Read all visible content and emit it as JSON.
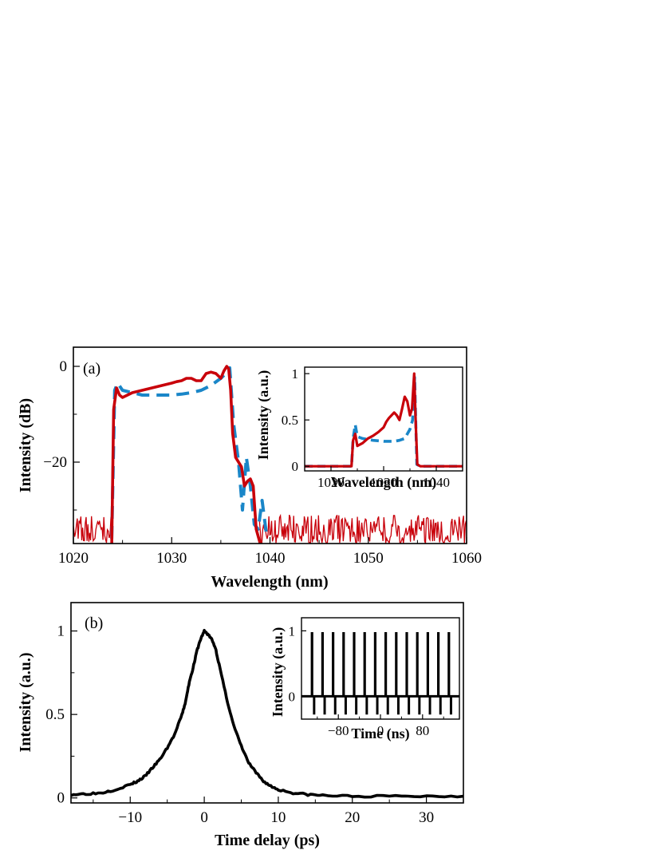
{
  "chart_data": [
    {
      "type": "line",
      "panel_label": "(a)",
      "xlabel": "Wavelength (nm)",
      "ylabel": "Intensity (dB)",
      "xlim": [
        1020,
        1060
      ],
      "ylim": [
        -37,
        4
      ],
      "xticks": [
        "1020",
        "1030",
        "1040",
        "1050",
        "1060"
      ],
      "yticks": [
        "0",
        "−20"
      ],
      "series": [
        {
          "style": "dashed",
          "color": "#1a86c8",
          "x": [
            1023.9,
            1024.2,
            1024.5,
            1025,
            1026,
            1027,
            1028,
            1029,
            1030,
            1031,
            1032,
            1033,
            1034,
            1035,
            1035.5,
            1035.9,
            1036.3,
            1036.8,
            1037.2,
            1037.6,
            1038.0,
            1038.4,
            1038.8,
            1039.2,
            1039.7
          ],
          "y": [
            -36,
            -5,
            -3.5,
            -5,
            -5.5,
            -6,
            -6,
            -6,
            -6,
            -5.8,
            -5.5,
            -5,
            -4,
            -2.5,
            -1.5,
            -0.3,
            -12,
            -20,
            -30,
            -19,
            -25,
            -33,
            -34,
            -28,
            -36
          ]
        },
        {
          "style": "solid",
          "color": "#c8000a",
          "noise_floor": [
            -37,
            -31
          ],
          "x": [
            1023.9,
            1024.1,
            1024.4,
            1024.7,
            1025,
            1025.5,
            1026,
            1027,
            1028,
            1029,
            1030,
            1030.5,
            1031,
            1031.5,
            1032,
            1032.5,
            1033,
            1033.5,
            1034,
            1034.5,
            1035,
            1035.3,
            1035.6,
            1035.8,
            1036.0,
            1036.2,
            1036.5,
            1036.8,
            1037.1,
            1037.4,
            1037.7,
            1038.0,
            1038.3,
            1038.6,
            1039.0
          ],
          "y": [
            -37,
            -9,
            -4.5,
            -6,
            -6.5,
            -6,
            -5.5,
            -5,
            -4.5,
            -4,
            -3.5,
            -3.2,
            -3,
            -2.5,
            -2.5,
            -3,
            -3,
            -1.5,
            -1.2,
            -1.5,
            -2.5,
            -1,
            0,
            -0.5,
            -5,
            -14,
            -19,
            -20,
            -21,
            -25,
            -24,
            -23.5,
            -25,
            -34,
            -37
          ]
        }
      ],
      "inset": {
        "xlabel": "Wavelength (nm)",
        "ylabel": "Intensity (a.u.)",
        "xlim": [
          1015,
          1045
        ],
        "ylim": [
          -0.05,
          1.07
        ],
        "xticks": [
          "1020",
          "1030",
          "1040"
        ],
        "yticks": [
          "0",
          "0.5",
          "1"
        ],
        "series": [
          {
            "style": "dashed",
            "color": "#1a86c8",
            "x": [
              1015,
              1023.9,
              1024.2,
              1024.6,
              1025,
              1026,
              1028,
              1030,
              1032,
              1033,
              1034,
              1035,
              1035.5,
              1035.9,
              1036.3,
              1037,
              1045
            ],
            "y": [
              0,
              0,
              0.3,
              0.45,
              0.32,
              0.3,
              0.28,
              0.27,
              0.27,
              0.28,
              0.3,
              0.4,
              0.5,
              0.96,
              0.02,
              0,
              0
            ]
          },
          {
            "style": "solid",
            "color": "#c8000a",
            "x": [
              1015,
              1023.9,
              1024.2,
              1024.6,
              1025,
              1026,
              1027,
              1028,
              1029,
              1030,
              1030.5,
              1031,
              1032,
              1032.5,
              1033,
              1033.5,
              1034,
              1034.5,
              1035,
              1035.4,
              1035.8,
              1036.1,
              1036.4,
              1037,
              1045
            ],
            "y": [
              0,
              0,
              0.28,
              0.35,
              0.22,
              0.25,
              0.3,
              0.33,
              0.37,
              0.42,
              0.48,
              0.52,
              0.58,
              0.55,
              0.5,
              0.62,
              0.75,
              0.7,
              0.55,
              0.62,
              1.0,
              0.45,
              0.02,
              0,
              0
            ]
          }
        ]
      }
    },
    {
      "type": "line",
      "panel_label": "(b)",
      "xlabel": "Time delay (ps)",
      "ylabel": "Intensity (a.u.)",
      "xlim": [
        -18,
        35
      ],
      "ylim": [
        -0.03,
        1.17
      ],
      "xticks": [
        "−10",
        "0",
        "10",
        "20",
        "30"
      ],
      "yticks": [
        "0",
        "0.5",
        "1"
      ],
      "series": [
        {
          "style": "solid",
          "color": "#000000",
          "x": [
            -18,
            -16,
            -14,
            -12,
            -10,
            -9,
            -8,
            -7,
            -6,
            -5,
            -4,
            -3,
            -2.5,
            -2,
            -1.5,
            -1,
            -0.5,
            0,
            0.5,
            1,
            1.5,
            2,
            3,
            4,
            5,
            6,
            7,
            8,
            9,
            10,
            12,
            14,
            16,
            20,
            25,
            30,
            35
          ],
          "y": [
            0.02,
            0.025,
            0.03,
            0.05,
            0.08,
            0.1,
            0.13,
            0.18,
            0.23,
            0.3,
            0.38,
            0.5,
            0.58,
            0.7,
            0.78,
            0.88,
            0.95,
            1.0,
            0.98,
            0.95,
            0.9,
            0.8,
            0.6,
            0.43,
            0.31,
            0.21,
            0.15,
            0.1,
            0.07,
            0.05,
            0.03,
            0.02,
            0.015,
            0.01,
            0.01,
            0.01,
            0.01
          ]
        }
      ],
      "inset": {
        "xlabel": "Time (ns)",
        "ylabel": "Intensity (a.u.)",
        "xlim": [
          -150,
          150
        ],
        "ylim": [
          -0.35,
          1.2
        ],
        "xticks": [
          "−80",
          "0",
          "80"
        ],
        "yticks": [
          "0",
          "1"
        ],
        "pulses": {
          "period_ns": 20,
          "first_ns": -130,
          "count": 14,
          "peak": 0.98,
          "undershoot": -0.28,
          "color": "#000000"
        }
      }
    }
  ]
}
